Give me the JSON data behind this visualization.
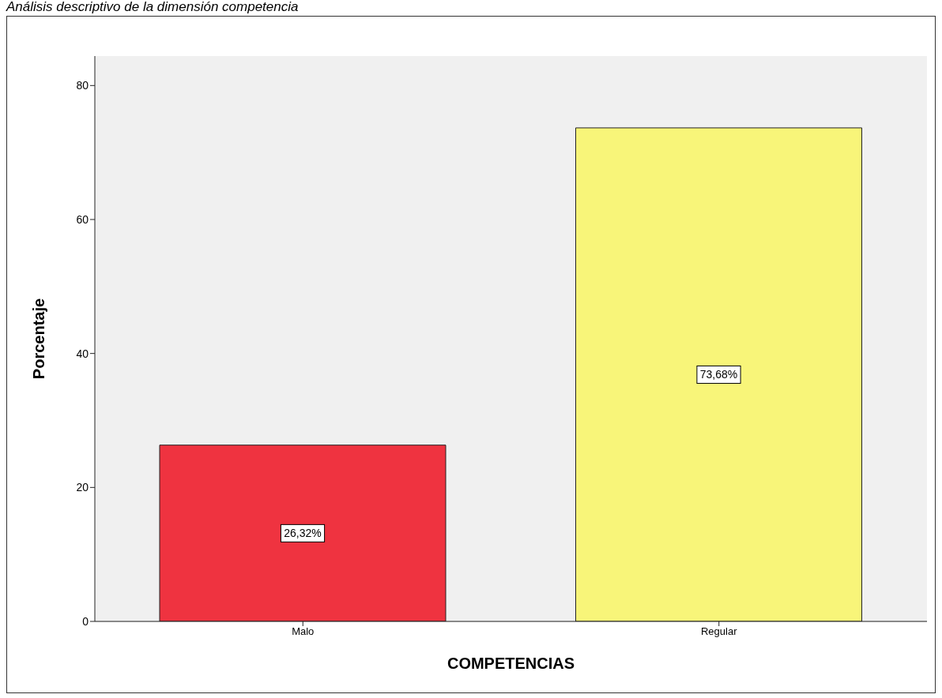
{
  "chart_data": {
    "type": "bar",
    "title": "Análisis descriptivo de la dimensión competencia",
    "xlabel": "COMPETENCIAS",
    "ylabel": "Porcentaje",
    "categories": [
      "Malo",
      "Regular"
    ],
    "values": [
      26.32,
      73.68
    ],
    "value_labels": [
      "26,32%",
      "73,68%"
    ],
    "colors": [
      "#ef3340",
      "#f8f579"
    ],
    "ylim": [
      0,
      84.4
    ],
    "yticks": [
      0,
      20,
      40,
      60,
      80
    ],
    "grid": false,
    "legend": false
  }
}
